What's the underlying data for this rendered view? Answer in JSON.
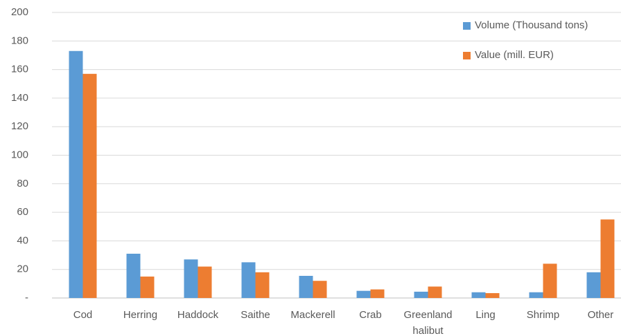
{
  "chart_data": {
    "type": "bar",
    "categories": [
      "Cod",
      "Herring",
      "Haddock",
      "Saithe",
      "Mackerell",
      "Crab",
      "Greenland halibut",
      "Ling",
      "Shrimp",
      "Other"
    ],
    "series": [
      {
        "name": "Volume (Thousand tons)",
        "color": "#5b9bd5",
        "values": [
          173,
          31,
          27,
          25,
          15.5,
          5,
          4.4,
          4,
          4,
          18
        ]
      },
      {
        "name": "Value (mill. EUR)",
        "color": "#ed7d31",
        "values": [
          157,
          15,
          22,
          18,
          12,
          6,
          8,
          3.4,
          24,
          55
        ]
      }
    ],
    "ylim": [
      0,
      200
    ],
    "yticks": [
      {
        "value": 0,
        "label": "-"
      },
      20,
      40,
      60,
      80,
      100,
      120,
      140,
      160,
      180,
      200
    ],
    "grid": true,
    "legend": "top-right"
  }
}
